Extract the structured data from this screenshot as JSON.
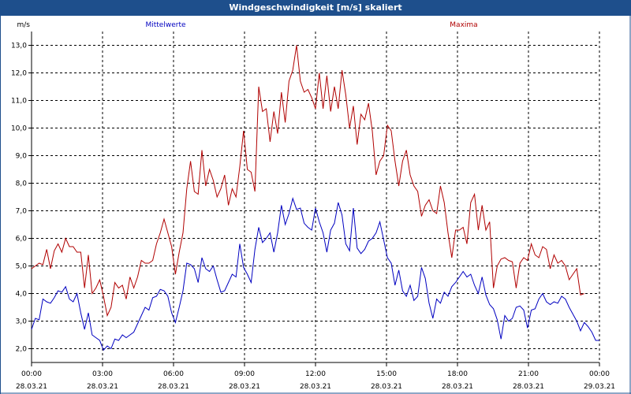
{
  "window": {
    "title": "Windgeschwindigkeit [m/s] skaliert"
  },
  "chart_data": {
    "type": "line",
    "title": "Windgeschwindigkeit [m/s] skaliert",
    "ylabel": "m/s",
    "xlabel": "",
    "ylim": [
      1.5,
      13.5
    ],
    "y_ticks": [
      "2,0",
      "3,0",
      "4,0",
      "5,0",
      "6,0",
      "7,0",
      "8,0",
      "9,0",
      "10,0",
      "11,0",
      "12,0",
      "13,0"
    ],
    "x_range": [
      "28.03.21 00:00",
      "29.03.21 00:00"
    ],
    "x_ticks": [
      {
        "time": "00:00",
        "date": "28.03.21"
      },
      {
        "time": "03:00",
        "date": "28.03.21"
      },
      {
        "time": "06:00",
        "date": "28.03.21"
      },
      {
        "time": "09:00",
        "date": "28.03.21"
      },
      {
        "time": "12:00",
        "date": "28.03.21"
      },
      {
        "time": "15:00",
        "date": "28.03.21"
      },
      {
        "time": "18:00",
        "date": "28.03.21"
      },
      {
        "time": "21:00",
        "date": "28.03.21"
      },
      {
        "time": "00:00",
        "date": "29.03.21"
      }
    ],
    "grid": true,
    "legend": "top",
    "series": [
      {
        "name": "Mittelwerte",
        "color": "#0000c0",
        "values": [
          [
            0.0,
            2.7
          ],
          [
            0.2,
            3.1
          ],
          [
            0.4,
            3.05
          ],
          [
            0.6,
            3.8
          ],
          [
            0.8,
            3.7
          ],
          [
            1.0,
            3.65
          ],
          [
            1.2,
            3.85
          ],
          [
            1.4,
            4.1
          ],
          [
            1.6,
            4.05
          ],
          [
            1.8,
            4.25
          ],
          [
            2.0,
            3.8
          ],
          [
            2.2,
            3.7
          ],
          [
            2.4,
            4.0
          ],
          [
            2.6,
            3.3
          ],
          [
            2.8,
            2.7
          ],
          [
            3.0,
            3.3
          ],
          [
            3.2,
            2.5
          ],
          [
            3.4,
            2.4
          ],
          [
            3.6,
            2.3
          ],
          [
            3.8,
            1.95
          ],
          [
            4.0,
            2.1
          ],
          [
            4.2,
            2.0
          ],
          [
            4.4,
            2.35
          ],
          [
            4.6,
            2.3
          ],
          [
            4.8,
            2.5
          ],
          [
            5.0,
            2.4
          ],
          [
            5.2,
            2.5
          ],
          [
            5.4,
            2.6
          ],
          [
            5.6,
            2.9
          ],
          [
            5.8,
            3.2
          ],
          [
            6.0,
            3.5
          ],
          [
            6.2,
            3.4
          ],
          [
            6.4,
            3.85
          ],
          [
            6.6,
            3.9
          ],
          [
            6.8,
            4.15
          ],
          [
            7.0,
            4.1
          ],
          [
            7.2,
            3.9
          ],
          [
            7.4,
            3.3
          ],
          [
            7.6,
            2.95
          ],
          [
            7.8,
            3.5
          ],
          [
            8.0,
            4.1
          ],
          [
            8.2,
            5.1
          ],
          [
            8.4,
            5.05
          ],
          [
            8.6,
            4.9
          ],
          [
            8.8,
            4.4
          ],
          [
            9.0,
            5.3
          ],
          [
            9.2,
            4.9
          ],
          [
            9.4,
            4.8
          ],
          [
            9.6,
            5.0
          ],
          [
            9.8,
            4.5
          ],
          [
            10.0,
            4.05
          ],
          [
            10.2,
            4.1
          ],
          [
            10.4,
            4.4
          ],
          [
            10.6,
            4.7
          ],
          [
            10.8,
            4.6
          ],
          [
            11.0,
            5.8
          ],
          [
            11.2,
            4.95
          ],
          [
            11.4,
            4.7
          ],
          [
            11.6,
            4.4
          ],
          [
            11.8,
            5.6
          ],
          [
            12.0,
            6.4
          ],
          [
            12.2,
            5.85
          ],
          [
            12.4,
            6.0
          ],
          [
            12.6,
            6.2
          ],
          [
            12.8,
            5.5
          ],
          [
            13.0,
            6.2
          ],
          [
            13.2,
            7.2
          ],
          [
            13.4,
            6.5
          ],
          [
            13.6,
            6.9
          ],
          [
            13.8,
            7.45
          ],
          [
            14.0,
            7.05
          ],
          [
            14.2,
            7.1
          ],
          [
            14.4,
            6.55
          ],
          [
            14.6,
            6.4
          ],
          [
            14.8,
            6.3
          ],
          [
            15.0,
            7.1
          ],
          [
            15.2,
            6.6
          ],
          [
            15.4,
            6.2
          ],
          [
            15.6,
            5.5
          ],
          [
            15.8,
            6.3
          ],
          [
            16.0,
            6.55
          ],
          [
            16.2,
            7.3
          ],
          [
            16.4,
            6.85
          ],
          [
            16.6,
            5.8
          ],
          [
            16.8,
            5.55
          ],
          [
            17.0,
            7.1
          ],
          [
            17.2,
            5.65
          ],
          [
            17.4,
            5.45
          ],
          [
            17.6,
            5.6
          ],
          [
            17.8,
            5.9
          ],
          [
            18.0,
            6.0
          ],
          [
            18.2,
            6.2
          ],
          [
            18.4,
            6.6
          ],
          [
            18.6,
            5.95
          ],
          [
            18.8,
            5.3
          ],
          [
            19.0,
            5.1
          ],
          [
            19.2,
            4.3
          ],
          [
            19.4,
            4.85
          ],
          [
            19.6,
            4.1
          ],
          [
            19.8,
            3.9
          ],
          [
            20.0,
            4.3
          ],
          [
            20.2,
            3.75
          ],
          [
            20.4,
            3.9
          ],
          [
            20.6,
            4.95
          ],
          [
            20.8,
            4.55
          ],
          [
            21.0,
            3.65
          ],
          [
            21.2,
            3.1
          ],
          [
            21.4,
            3.8
          ],
          [
            21.6,
            3.65
          ],
          [
            21.8,
            4.05
          ],
          [
            22.0,
            3.9
          ],
          [
            22.2,
            4.25
          ],
          [
            22.4,
            4.4
          ],
          [
            22.6,
            4.6
          ],
          [
            22.8,
            4.8
          ],
          [
            23.0,
            4.6
          ],
          [
            23.2,
            4.7
          ],
          [
            23.4,
            4.3
          ],
          [
            23.6,
            4.0
          ],
          [
            23.8,
            4.6
          ],
          [
            24.0,
            3.95
          ],
          [
            24.2,
            3.6
          ],
          [
            24.4,
            3.45
          ],
          [
            24.6,
            3.05
          ],
          [
            24.8,
            2.35
          ],
          [
            25.0,
            3.2
          ],
          [
            25.2,
            3.0
          ],
          [
            25.4,
            3.1
          ],
          [
            25.6,
            3.5
          ],
          [
            25.8,
            3.55
          ],
          [
            26.0,
            3.4
          ],
          [
            26.2,
            2.75
          ],
          [
            26.4,
            3.4
          ],
          [
            26.6,
            3.45
          ],
          [
            26.8,
            3.8
          ],
          [
            27.0,
            4.0
          ],
          [
            27.2,
            3.7
          ],
          [
            27.4,
            3.6
          ],
          [
            27.6,
            3.7
          ],
          [
            27.8,
            3.65
          ],
          [
            28.0,
            3.9
          ],
          [
            28.2,
            3.8
          ],
          [
            28.4,
            3.5
          ],
          [
            28.6,
            3.25
          ],
          [
            28.8,
            3.0
          ],
          [
            29.0,
            2.65
          ],
          [
            29.2,
            2.95
          ],
          [
            29.4,
            2.8
          ],
          [
            29.6,
            2.6
          ],
          [
            29.8,
            2.3
          ],
          [
            30.0,
            2.3
          ]
        ]
      },
      {
        "name": "Maxima",
        "color": "#b00000",
        "values": [
          [
            0.0,
            4.9
          ],
          [
            0.2,
            5.0
          ],
          [
            0.4,
            5.1
          ],
          [
            0.6,
            5.05
          ],
          [
            0.8,
            5.6
          ],
          [
            1.0,
            4.9
          ],
          [
            1.2,
            5.55
          ],
          [
            1.4,
            5.8
          ],
          [
            1.6,
            5.5
          ],
          [
            1.8,
            6.0
          ],
          [
            2.0,
            5.7
          ],
          [
            2.2,
            5.7
          ],
          [
            2.4,
            5.5
          ],
          [
            2.6,
            5.5
          ],
          [
            2.8,
            4.2
          ],
          [
            3.0,
            5.4
          ],
          [
            3.2,
            4.0
          ],
          [
            3.4,
            4.2
          ],
          [
            3.6,
            4.5
          ],
          [
            3.8,
            3.9
          ],
          [
            4.0,
            3.2
          ],
          [
            4.2,
            3.5
          ],
          [
            4.4,
            4.4
          ],
          [
            4.6,
            4.2
          ],
          [
            4.8,
            4.3
          ],
          [
            5.0,
            3.8
          ],
          [
            5.2,
            4.6
          ],
          [
            5.4,
            4.2
          ],
          [
            5.6,
            4.6
          ],
          [
            5.8,
            5.2
          ],
          [
            6.0,
            5.1
          ],
          [
            6.2,
            5.1
          ],
          [
            6.4,
            5.2
          ],
          [
            6.6,
            5.8
          ],
          [
            6.8,
            6.2
          ],
          [
            7.0,
            6.7
          ],
          [
            7.2,
            6.2
          ],
          [
            7.4,
            5.7
          ],
          [
            7.6,
            4.7
          ],
          [
            7.8,
            5.5
          ],
          [
            8.0,
            6.2
          ],
          [
            8.2,
            7.8
          ],
          [
            8.4,
            8.8
          ],
          [
            8.6,
            7.7
          ],
          [
            8.8,
            7.6
          ],
          [
            9.0,
            9.2
          ],
          [
            9.2,
            7.9
          ],
          [
            9.4,
            8.5
          ],
          [
            9.6,
            8.1
          ],
          [
            9.8,
            7.5
          ],
          [
            10.0,
            7.8
          ],
          [
            10.2,
            8.3
          ],
          [
            10.4,
            7.2
          ],
          [
            10.6,
            7.8
          ],
          [
            10.8,
            7.5
          ],
          [
            11.0,
            8.6
          ],
          [
            11.2,
            9.9
          ],
          [
            11.4,
            8.5
          ],
          [
            11.6,
            8.4
          ],
          [
            11.8,
            7.7
          ],
          [
            12.0,
            11.5
          ],
          [
            12.2,
            10.6
          ],
          [
            12.4,
            10.7
          ],
          [
            12.6,
            9.5
          ],
          [
            12.8,
            10.6
          ],
          [
            13.0,
            9.8
          ],
          [
            13.2,
            11.3
          ],
          [
            13.4,
            10.2
          ],
          [
            13.6,
            11.7
          ],
          [
            13.8,
            12.1
          ],
          [
            14.0,
            13.0
          ],
          [
            14.2,
            11.7
          ],
          [
            14.4,
            11.3
          ],
          [
            14.6,
            11.4
          ],
          [
            14.8,
            11.1
          ],
          [
            15.0,
            10.7
          ],
          [
            15.2,
            12.0
          ],
          [
            15.4,
            10.7
          ],
          [
            15.6,
            11.9
          ],
          [
            15.8,
            10.6
          ],
          [
            16.0,
            11.5
          ],
          [
            16.2,
            10.7
          ],
          [
            16.4,
            12.1
          ],
          [
            16.6,
            11.2
          ],
          [
            16.8,
            10.0
          ],
          [
            17.0,
            10.8
          ],
          [
            17.2,
            9.4
          ],
          [
            17.4,
            10.5
          ],
          [
            17.6,
            10.3
          ],
          [
            17.8,
            10.9
          ],
          [
            18.0,
            9.9
          ],
          [
            18.2,
            8.3
          ],
          [
            18.4,
            8.8
          ],
          [
            18.6,
            9.0
          ],
          [
            18.8,
            10.1
          ],
          [
            19.0,
            9.9
          ],
          [
            19.2,
            8.8
          ],
          [
            19.4,
            7.9
          ],
          [
            19.6,
            8.8
          ],
          [
            19.8,
            9.2
          ],
          [
            20.0,
            8.3
          ],
          [
            20.2,
            7.9
          ],
          [
            20.4,
            7.7
          ],
          [
            20.6,
            6.8
          ],
          [
            20.8,
            7.2
          ],
          [
            21.0,
            7.4
          ],
          [
            21.2,
            7.0
          ],
          [
            21.4,
            6.9
          ],
          [
            21.6,
            7.9
          ],
          [
            21.8,
            7.3
          ],
          [
            22.0,
            6.2
          ],
          [
            22.2,
            5.3
          ],
          [
            22.4,
            6.3
          ],
          [
            22.6,
            6.3
          ],
          [
            22.8,
            6.4
          ],
          [
            23.0,
            5.8
          ],
          [
            23.2,
            7.3
          ],
          [
            23.4,
            7.6
          ],
          [
            23.6,
            6.3
          ],
          [
            23.8,
            7.2
          ],
          [
            24.0,
            6.3
          ],
          [
            24.2,
            6.6
          ],
          [
            24.4,
            4.2
          ],
          [
            24.6,
            5.0
          ],
          [
            24.8,
            5.25
          ],
          [
            25.0,
            5.3
          ],
          [
            25.2,
            5.2
          ],
          [
            25.4,
            5.15
          ],
          [
            25.6,
            4.2
          ],
          [
            25.8,
            5.1
          ],
          [
            26.0,
            5.3
          ],
          [
            26.2,
            5.2
          ],
          [
            26.4,
            5.8
          ],
          [
            26.6,
            5.4
          ],
          [
            26.8,
            5.3
          ],
          [
            27.0,
            5.7
          ],
          [
            27.2,
            5.6
          ],
          [
            27.4,
            4.9
          ],
          [
            27.6,
            5.4
          ],
          [
            27.8,
            5.1
          ],
          [
            28.0,
            5.2
          ],
          [
            28.2,
            5.0
          ],
          [
            28.4,
            4.5
          ],
          [
            28.6,
            4.7
          ],
          [
            28.8,
            4.9
          ],
          [
            29.0,
            3.95
          ],
          [
            29.2,
            4.0
          ]
        ]
      }
    ]
  }
}
